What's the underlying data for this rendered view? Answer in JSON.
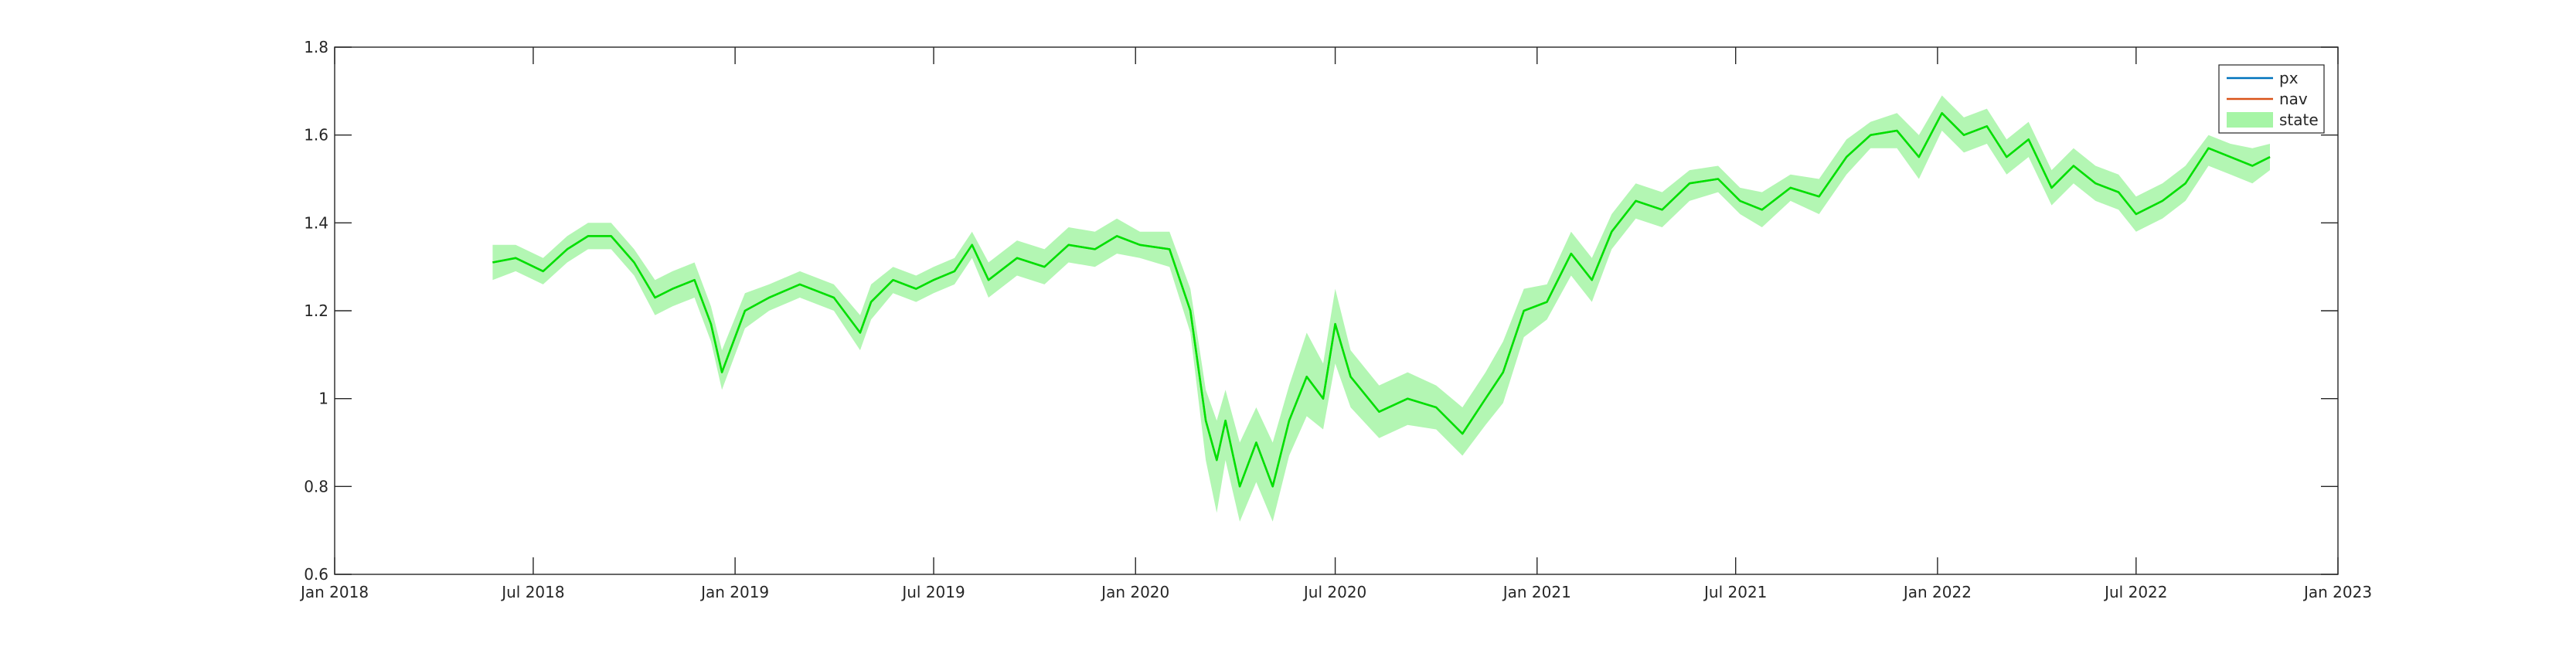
{
  "chart_data": {
    "type": "line",
    "title": "",
    "xlabel": "",
    "ylabel": "",
    "xlim": [
      "2018-01-01",
      "2023-01-01"
    ],
    "ylim": [
      0.6,
      1.8
    ],
    "grid": false,
    "legend_position": "top-right",
    "x_ticks": [
      "2018-01-01",
      "2018-07-01",
      "2019-01-01",
      "2019-07-01",
      "2020-01-01",
      "2020-07-01",
      "2021-01-01",
      "2021-07-01",
      "2022-01-01",
      "2022-07-01",
      "2023-01-01"
    ],
    "x_tick_labels": [
      "Jan 2018",
      "Jul 2018",
      "Jan 2019",
      "Jul 2019",
      "Jan 2020",
      "Jul 2020",
      "Jan 2021",
      "Jul 2021",
      "Jan 2022",
      "Jul 2022",
      "Jan 2023"
    ],
    "y_ticks": [
      0.6,
      0.8,
      1.0,
      1.2,
      1.4,
      1.6,
      1.8
    ],
    "y_tick_labels": [
      "0.6",
      "0.8",
      "1",
      "1.2",
      "1.4",
      "1.6",
      "1.8"
    ],
    "series": [
      {
        "name": "px",
        "color": "#0072bd",
        "x": [
          "2018-05-25",
          "2018-06-15",
          "2018-07-10",
          "2018-08-01",
          "2018-08-20",
          "2018-09-10",
          "2018-10-01",
          "2018-10-20",
          "2018-11-05",
          "2018-11-25",
          "2018-12-10",
          "2018-12-20",
          "2019-01-10",
          "2019-02-01",
          "2019-03-01",
          "2019-04-01",
          "2019-04-25",
          "2019-05-05",
          "2019-05-25",
          "2019-06-15",
          "2019-07-01",
          "2019-07-20",
          "2019-08-05",
          "2019-08-20",
          "2019-09-15",
          "2019-10-10",
          "2019-11-01",
          "2019-11-25",
          "2019-12-15",
          "2020-01-05",
          "2020-02-01",
          "2020-02-20",
          "2020-03-05",
          "2020-03-15",
          "2020-03-23",
          "2020-04-05",
          "2020-04-20",
          "2020-05-05",
          "2020-05-20",
          "2020-06-05",
          "2020-06-20",
          "2020-07-01",
          "2020-07-15",
          "2020-08-10",
          "2020-09-05",
          "2020-10-01",
          "2020-10-25",
          "2020-11-15",
          "2020-12-01",
          "2020-12-20",
          "2021-01-10",
          "2021-02-01",
          "2021-02-20",
          "2021-03-10",
          "2021-04-01",
          "2021-04-25",
          "2021-05-20",
          "2021-06-15",
          "2021-07-05",
          "2021-07-25",
          "2021-08-20",
          "2021-09-15",
          "2021-10-10",
          "2021-11-01",
          "2021-11-25",
          "2021-12-15",
          "2022-01-05",
          "2022-01-25",
          "2022-02-15",
          "2022-03-05",
          "2022-03-25",
          "2022-04-15",
          "2022-05-05",
          "2022-05-25",
          "2022-06-15",
          "2022-07-01",
          "2022-07-25",
          "2022-08-15",
          "2022-09-05",
          "2022-09-25",
          "2022-10-15",
          "2022-10-31"
        ],
        "values": [
          1.31,
          1.32,
          1.29,
          1.34,
          1.37,
          1.37,
          1.31,
          1.23,
          1.25,
          1.27,
          1.17,
          1.06,
          1.2,
          1.23,
          1.26,
          1.23,
          1.15,
          1.22,
          1.27,
          1.25,
          1.27,
          1.29,
          1.35,
          1.27,
          1.32,
          1.3,
          1.35,
          1.34,
          1.37,
          1.35,
          1.34,
          1.2,
          0.95,
          0.86,
          0.95,
          0.8,
          0.9,
          0.8,
          0.95,
          1.05,
          1.0,
          1.17,
          1.05,
          0.97,
          1.0,
          0.98,
          0.92,
          1.0,
          1.06,
          1.2,
          1.22,
          1.33,
          1.27,
          1.38,
          1.45,
          1.43,
          1.49,
          1.5,
          1.45,
          1.43,
          1.48,
          1.46,
          1.55,
          1.6,
          1.61,
          1.55,
          1.65,
          1.6,
          1.62,
          1.55,
          1.59,
          1.48,
          1.53,
          1.49,
          1.47,
          1.42,
          1.45,
          1.49,
          1.57,
          1.55,
          1.53,
          1.55
        ]
      },
      {
        "name": "nav",
        "color": "#d95319",
        "x": [
          "2018-05-25",
          "2018-06-15",
          "2018-07-10",
          "2018-08-01",
          "2018-08-20",
          "2018-09-10",
          "2018-10-01",
          "2018-10-20",
          "2018-11-05",
          "2018-11-25",
          "2018-12-10",
          "2018-12-20",
          "2019-01-10",
          "2019-02-01",
          "2019-03-01",
          "2019-04-01",
          "2019-04-25",
          "2019-05-05",
          "2019-05-25",
          "2019-06-15",
          "2019-07-01",
          "2019-07-20",
          "2019-08-05",
          "2019-08-20",
          "2019-09-15",
          "2019-10-10",
          "2019-11-01",
          "2019-11-25",
          "2019-12-15",
          "2020-01-05",
          "2020-02-01",
          "2020-02-20",
          "2020-03-05",
          "2020-03-15",
          "2020-03-23",
          "2020-04-05",
          "2020-04-20",
          "2020-05-05",
          "2020-05-20",
          "2020-06-05",
          "2020-06-20",
          "2020-07-01",
          "2020-07-15",
          "2020-08-10",
          "2020-09-05",
          "2020-10-01",
          "2020-10-25",
          "2020-11-15",
          "2020-12-01",
          "2020-12-20",
          "2021-01-10",
          "2021-02-01",
          "2021-02-20",
          "2021-03-10",
          "2021-04-01",
          "2021-04-25",
          "2021-05-20",
          "2021-06-15",
          "2021-07-05",
          "2021-07-25",
          "2021-08-20",
          "2021-09-15",
          "2021-10-10",
          "2021-11-01",
          "2021-11-25",
          "2021-12-15",
          "2022-01-05",
          "2022-01-25",
          "2022-02-15",
          "2022-03-05",
          "2022-03-25",
          "2022-04-15",
          "2022-05-05",
          "2022-05-25",
          "2022-06-15",
          "2022-07-01",
          "2022-07-25",
          "2022-08-15",
          "2022-09-05",
          "2022-09-25",
          "2022-10-15",
          "2022-10-31"
        ],
        "values": [
          1.31,
          1.32,
          1.29,
          1.34,
          1.37,
          1.37,
          1.31,
          1.23,
          1.25,
          1.27,
          1.17,
          1.06,
          1.2,
          1.23,
          1.26,
          1.23,
          1.15,
          1.22,
          1.27,
          1.25,
          1.27,
          1.29,
          1.35,
          1.27,
          1.32,
          1.3,
          1.35,
          1.34,
          1.37,
          1.35,
          1.34,
          1.2,
          0.95,
          0.86,
          0.95,
          0.8,
          0.9,
          0.8,
          0.95,
          1.05,
          1.0,
          1.17,
          1.05,
          0.97,
          1.0,
          0.98,
          0.92,
          1.0,
          1.06,
          1.2,
          1.22,
          1.33,
          1.27,
          1.38,
          1.45,
          1.43,
          1.49,
          1.5,
          1.45,
          1.43,
          1.48,
          1.46,
          1.55,
          1.6,
          1.61,
          1.55,
          1.65,
          1.6,
          1.62,
          1.55,
          1.59,
          1.48,
          1.53,
          1.49,
          1.47,
          1.42,
          1.45,
          1.49,
          1.57,
          1.55,
          1.53,
          1.55
        ]
      },
      {
        "name": "state",
        "type": "band",
        "color": "#00e000",
        "fill_color": "#a6f5a6",
        "x": [
          "2018-05-25",
          "2018-06-15",
          "2018-07-10",
          "2018-08-01",
          "2018-08-20",
          "2018-09-10",
          "2018-10-01",
          "2018-10-20",
          "2018-11-05",
          "2018-11-25",
          "2018-12-10",
          "2018-12-20",
          "2019-01-10",
          "2019-02-01",
          "2019-03-01",
          "2019-04-01",
          "2019-04-25",
          "2019-05-05",
          "2019-05-25",
          "2019-06-15",
          "2019-07-01",
          "2019-07-20",
          "2019-08-05",
          "2019-08-20",
          "2019-09-15",
          "2019-10-10",
          "2019-11-01",
          "2019-11-25",
          "2019-12-15",
          "2020-01-05",
          "2020-02-01",
          "2020-02-20",
          "2020-03-05",
          "2020-03-15",
          "2020-03-23",
          "2020-04-05",
          "2020-04-20",
          "2020-05-05",
          "2020-05-20",
          "2020-06-05",
          "2020-06-20",
          "2020-07-01",
          "2020-07-15",
          "2020-08-10",
          "2020-09-05",
          "2020-10-01",
          "2020-10-25",
          "2020-11-15",
          "2020-12-01",
          "2020-12-20",
          "2021-01-10",
          "2021-02-01",
          "2021-02-20",
          "2021-03-10",
          "2021-04-01",
          "2021-04-25",
          "2021-05-20",
          "2021-06-15",
          "2021-07-05",
          "2021-07-25",
          "2021-08-20",
          "2021-09-15",
          "2021-10-10",
          "2021-11-01",
          "2021-11-25",
          "2021-12-15",
          "2022-01-05",
          "2022-01-25",
          "2022-02-15",
          "2022-03-05",
          "2022-03-25",
          "2022-04-15",
          "2022-05-05",
          "2022-05-25",
          "2022-06-15",
          "2022-07-01",
          "2022-07-25",
          "2022-08-15",
          "2022-09-05",
          "2022-09-25",
          "2022-10-15",
          "2022-10-31"
        ],
        "values": [
          1.31,
          1.32,
          1.29,
          1.34,
          1.37,
          1.37,
          1.31,
          1.23,
          1.25,
          1.27,
          1.17,
          1.06,
          1.2,
          1.23,
          1.26,
          1.23,
          1.15,
          1.22,
          1.27,
          1.25,
          1.27,
          1.29,
          1.35,
          1.27,
          1.32,
          1.3,
          1.35,
          1.34,
          1.37,
          1.35,
          1.34,
          1.2,
          0.95,
          0.86,
          0.95,
          0.8,
          0.9,
          0.8,
          0.95,
          1.05,
          1.0,
          1.17,
          1.05,
          0.97,
          1.0,
          0.98,
          0.92,
          1.0,
          1.06,
          1.2,
          1.22,
          1.33,
          1.27,
          1.38,
          1.45,
          1.43,
          1.49,
          1.5,
          1.45,
          1.43,
          1.48,
          1.46,
          1.55,
          1.6,
          1.61,
          1.55,
          1.65,
          1.6,
          1.62,
          1.55,
          1.59,
          1.48,
          1.53,
          1.49,
          1.47,
          1.42,
          1.45,
          1.49,
          1.57,
          1.55,
          1.53,
          1.55
        ],
        "upper": [
          1.35,
          1.35,
          1.32,
          1.37,
          1.4,
          1.4,
          1.34,
          1.27,
          1.29,
          1.31,
          1.21,
          1.11,
          1.24,
          1.26,
          1.29,
          1.26,
          1.19,
          1.26,
          1.3,
          1.28,
          1.3,
          1.32,
          1.38,
          1.31,
          1.36,
          1.34,
          1.39,
          1.38,
          1.41,
          1.38,
          1.38,
          1.25,
          1.02,
          0.95,
          1.02,
          0.9,
          0.98,
          0.9,
          1.03,
          1.15,
          1.08,
          1.25,
          1.11,
          1.03,
          1.06,
          1.03,
          0.98,
          1.06,
          1.13,
          1.25,
          1.26,
          1.38,
          1.32,
          1.42,
          1.49,
          1.47,
          1.52,
          1.53,
          1.48,
          1.47,
          1.51,
          1.5,
          1.59,
          1.63,
          1.65,
          1.6,
          1.69,
          1.64,
          1.66,
          1.59,
          1.63,
          1.52,
          1.57,
          1.53,
          1.51,
          1.46,
          1.49,
          1.53,
          1.6,
          1.58,
          1.57,
          1.58
        ],
        "lower": [
          1.27,
          1.29,
          1.26,
          1.31,
          1.34,
          1.34,
          1.28,
          1.19,
          1.21,
          1.23,
          1.13,
          1.02,
          1.16,
          1.2,
          1.23,
          1.2,
          1.11,
          1.18,
          1.24,
          1.22,
          1.24,
          1.26,
          1.32,
          1.23,
          1.28,
          1.26,
          1.31,
          1.3,
          1.33,
          1.32,
          1.3,
          1.15,
          0.86,
          0.74,
          0.86,
          0.72,
          0.81,
          0.72,
          0.87,
          0.96,
          0.93,
          1.08,
          0.98,
          0.91,
          0.94,
          0.93,
          0.87,
          0.94,
          0.99,
          1.14,
          1.18,
          1.28,
          1.22,
          1.34,
          1.41,
          1.39,
          1.45,
          1.47,
          1.42,
          1.39,
          1.45,
          1.42,
          1.51,
          1.57,
          1.57,
          1.5,
          1.61,
          1.56,
          1.58,
          1.51,
          1.55,
          1.44,
          1.49,
          1.45,
          1.43,
          1.38,
          1.41,
          1.45,
          1.53,
          1.51,
          1.49,
          1.52
        ]
      }
    ]
  }
}
